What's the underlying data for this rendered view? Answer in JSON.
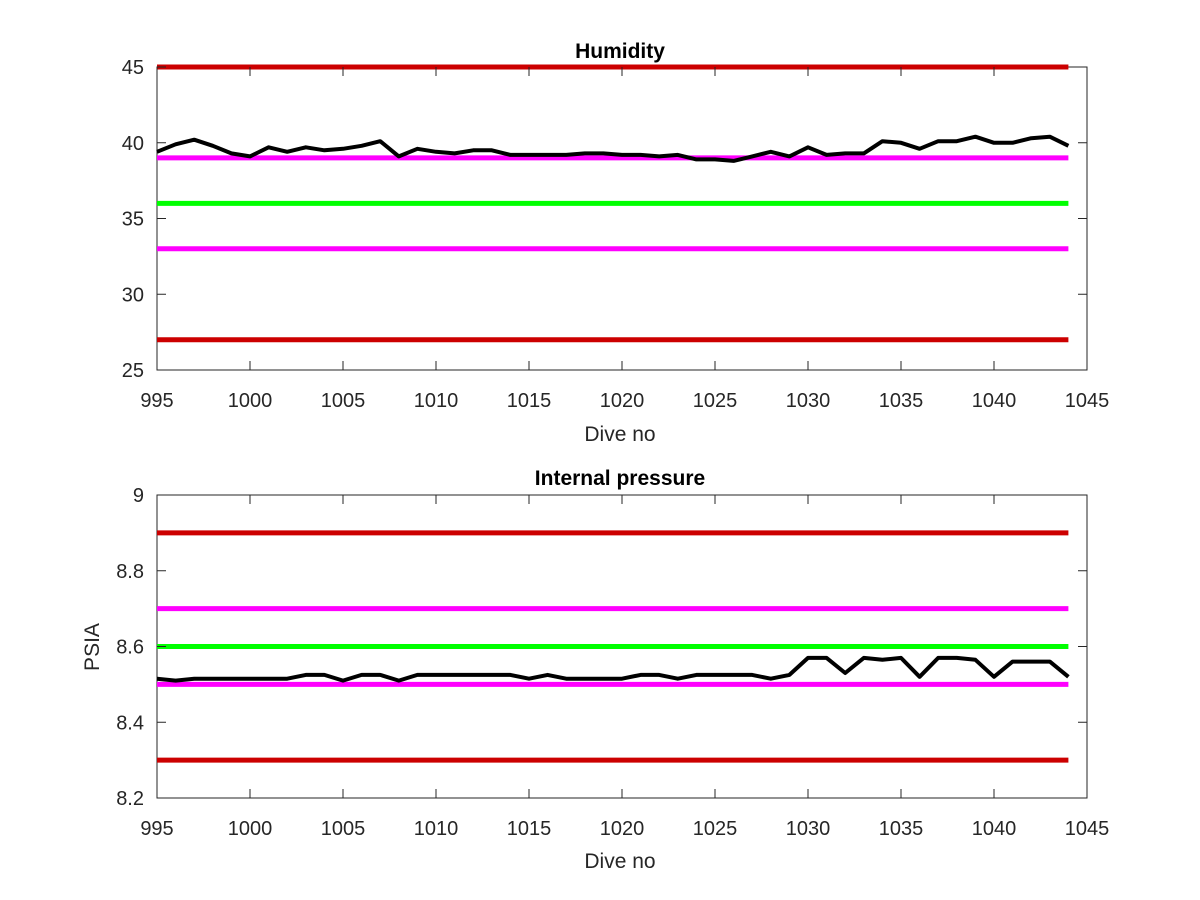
{
  "chart_data": [
    {
      "type": "line",
      "title": "Humidity",
      "xlabel": "Dive no",
      "ylabel": "",
      "xlim": [
        995,
        1045
      ],
      "ylim": [
        25,
        45
      ],
      "xticks": [
        995,
        1000,
        1005,
        1010,
        1015,
        1020,
        1025,
        1030,
        1035,
        1040,
        1045
      ],
      "yticks": [
        25,
        30,
        35,
        40,
        45
      ],
      "grid": false,
      "series": [
        {
          "color": "#000000",
          "x": [
            995,
            996,
            997,
            998,
            999,
            1000,
            1001,
            1002,
            1003,
            1004,
            1005,
            1006,
            1007,
            1008,
            1009,
            1010,
            1011,
            1012,
            1013,
            1014,
            1015,
            1016,
            1017,
            1018,
            1019,
            1020,
            1021,
            1022,
            1023,
            1024,
            1025,
            1026,
            1027,
            1028,
            1029,
            1030,
            1031,
            1032,
            1033,
            1034,
            1035,
            1036,
            1037,
            1038,
            1039,
            1040,
            1041,
            1042,
            1043,
            1044
          ],
          "y": [
            39.4,
            39.9,
            40.2,
            39.8,
            39.3,
            39.1,
            39.7,
            39.4,
            39.7,
            39.5,
            39.6,
            39.8,
            40.1,
            39.1,
            39.6,
            39.4,
            39.3,
            39.5,
            39.5,
            39.2,
            39.2,
            39.2,
            39.2,
            39.3,
            39.3,
            39.2,
            39.2,
            39.1,
            39.2,
            38.9,
            38.9,
            38.8,
            39.1,
            39.4,
            39.1,
            39.7,
            39.2,
            39.3,
            39.3,
            40.1,
            40.0,
            39.6,
            40.1,
            40.1,
            40.4,
            40.0,
            40.0,
            40.3,
            40.4,
            39.8
          ]
        }
      ],
      "reference_lines": [
        {
          "y": 45,
          "color": "#cc0000"
        },
        {
          "y": 39,
          "color": "#ff00ff"
        },
        {
          "y": 36,
          "color": "#00ff00"
        },
        {
          "y": 33,
          "color": "#ff00ff"
        },
        {
          "y": 27,
          "color": "#cc0000"
        }
      ]
    },
    {
      "type": "line",
      "title": "Internal pressure",
      "xlabel": "Dive no",
      "ylabel": "PSIA",
      "xlim": [
        995,
        1045
      ],
      "ylim": [
        8.2,
        9
      ],
      "xticks": [
        995,
        1000,
        1005,
        1010,
        1015,
        1020,
        1025,
        1030,
        1035,
        1040,
        1045
      ],
      "yticks": [
        8.2,
        8.4,
        8.6,
        8.8,
        9
      ],
      "grid": false,
      "series": [
        {
          "color": "#000000",
          "x": [
            995,
            996,
            997,
            998,
            999,
            1000,
            1001,
            1002,
            1003,
            1004,
            1005,
            1006,
            1007,
            1008,
            1009,
            1010,
            1011,
            1012,
            1013,
            1014,
            1015,
            1016,
            1017,
            1018,
            1019,
            1020,
            1021,
            1022,
            1023,
            1024,
            1025,
            1026,
            1027,
            1028,
            1029,
            1030,
            1031,
            1032,
            1033,
            1034,
            1035,
            1036,
            1037,
            1038,
            1039,
            1040,
            1041,
            1042,
            1043,
            1044
          ],
          "y": [
            8.515,
            8.51,
            8.515,
            8.515,
            8.515,
            8.515,
            8.515,
            8.515,
            8.525,
            8.525,
            8.51,
            8.525,
            8.525,
            8.51,
            8.525,
            8.525,
            8.525,
            8.525,
            8.525,
            8.525,
            8.515,
            8.525,
            8.515,
            8.515,
            8.515,
            8.515,
            8.525,
            8.525,
            8.515,
            8.525,
            8.525,
            8.525,
            8.525,
            8.515,
            8.525,
            8.57,
            8.57,
            8.53,
            8.57,
            8.565,
            8.57,
            8.52,
            8.57,
            8.57,
            8.565,
            8.52,
            8.56,
            8.56,
            8.56,
            8.52
          ]
        }
      ],
      "reference_lines": [
        {
          "y": 8.9,
          "color": "#cc0000"
        },
        {
          "y": 8.7,
          "color": "#ff00ff"
        },
        {
          "y": 8.6,
          "color": "#00ff00"
        },
        {
          "y": 8.5,
          "color": "#ff00ff"
        },
        {
          "y": 8.3,
          "color": "#cc0000"
        }
      ]
    }
  ]
}
